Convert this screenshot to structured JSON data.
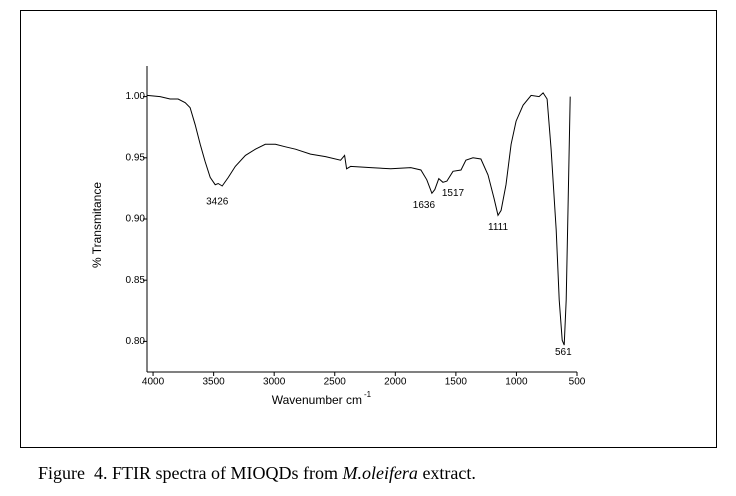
{
  "chart_data": {
    "type": "line",
    "ylabel": "% Transmitance",
    "xlabel": "Wavenumber cm",
    "xlabel_superscript": "-1",
    "color": "#000000",
    "xlim": [
      4050,
      500
    ],
    "xticks": [
      4000,
      3500,
      3000,
      2500,
      2000,
      1500,
      1000,
      500
    ],
    "ylim": [
      0.775,
      1.025
    ],
    "yticks": [
      {
        "value": 0.8,
        "label": "0.80"
      },
      {
        "value": 0.85,
        "label": "0.85"
      },
      {
        "value": 0.9,
        "label": "0.90"
      },
      {
        "value": 0.95,
        "label": "0.95"
      },
      {
        "value": 1.0,
        "label": "1.00"
      }
    ],
    "x": [
      4050,
      3942,
      3859,
      3793,
      3735,
      3694,
      3652,
      3611,
      3570,
      3528,
      3487,
      3462,
      3429,
      3379,
      3321,
      3238,
      3155,
      3073,
      2990,
      2907,
      2824,
      2700,
      2576,
      2452,
      2419,
      2402,
      2369,
      2203,
      2038,
      1872,
      1789,
      1740,
      1698,
      1674,
      1641,
      1607,
      1574,
      1524,
      1458,
      1417,
      1359,
      1293,
      1235,
      1185,
      1152,
      1127,
      1086,
      1044,
      1003,
      945,
      879,
      813,
      780,
      747,
      714,
      672,
      647,
      622,
      606,
      589,
      573,
      556
    ],
    "values": [
      1.001,
      1.0,
      0.998,
      0.998,
      0.995,
      0.991,
      0.977,
      0.961,
      0.947,
      0.934,
      0.928,
      0.929,
      0.927,
      0.934,
      0.943,
      0.952,
      0.957,
      0.961,
      0.961,
      0.959,
      0.957,
      0.953,
      0.951,
      0.948,
      0.952,
      0.941,
      0.943,
      0.942,
      0.941,
      0.942,
      0.94,
      0.932,
      0.921,
      0.924,
      0.933,
      0.93,
      0.931,
      0.939,
      0.94,
      0.948,
      0.95,
      0.949,
      0.936,
      0.917,
      0.903,
      0.907,
      0.928,
      0.961,
      0.98,
      0.993,
      1.001,
      1.0,
      1.003,
      0.998,
      0.957,
      0.891,
      0.834,
      0.801,
      0.797,
      0.834,
      0.916,
      1.0
    ],
    "annotations": [
      {
        "text": "3426",
        "x": 3470,
        "y": 0.914
      },
      {
        "text": "1636",
        "x": 1764,
        "y": 0.911
      },
      {
        "text": "1517",
        "x": 1524,
        "y": 0.921
      },
      {
        "text": "1111",
        "x": 1152,
        "y": 0.893
      },
      {
        "text": "561",
        "x": 613,
        "y": 0.791
      }
    ]
  },
  "caption": {
    "prefix": "Figure  4. FTIR spectra of MIOQDs from ",
    "italic": "M.oleifera",
    "suffix": " extract."
  }
}
